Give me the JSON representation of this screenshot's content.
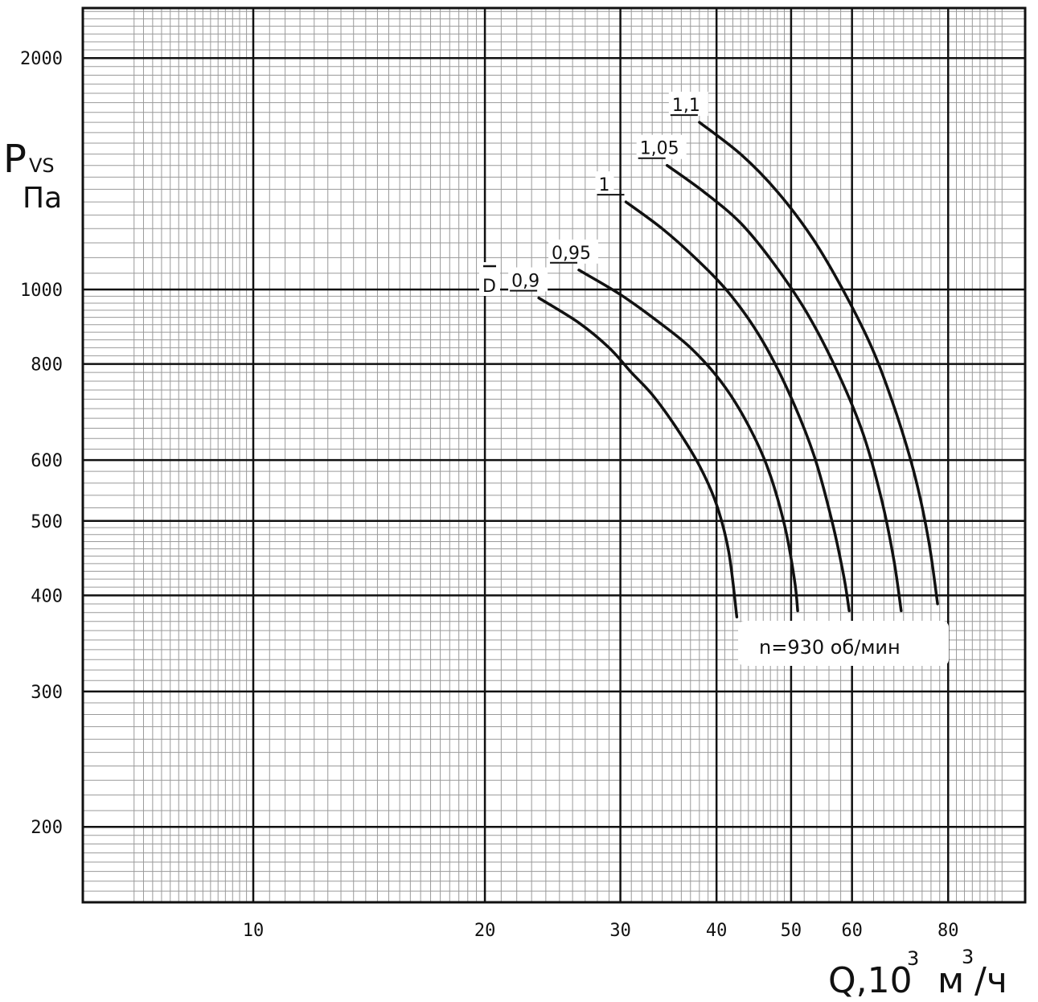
{
  "chart_data": {
    "type": "line",
    "title": "",
    "xscale": "log",
    "yscale": "log",
    "xlim": [
      7.0,
      95.0
    ],
    "ylim": [
      160,
      2500
    ],
    "grid": true,
    "xlabel": {
      "main": "Q,10",
      "exp": "3",
      "unit_main": "м",
      "unit_exp": "3",
      "unit_rest": "/ч"
    },
    "ylabel": {
      "main": "P",
      "sub": "VS",
      "unit": "Па"
    },
    "x_ticks": [
      {
        "value": 10,
        "label": "10"
      },
      {
        "value": 20,
        "label": "20"
      },
      {
        "value": 30,
        "label": "30"
      },
      {
        "value": 40,
        "label": "40"
      },
      {
        "value": 50,
        "label": "50"
      },
      {
        "value": 60,
        "label": "60"
      },
      {
        "value": 80,
        "label": "80"
      }
    ],
    "y_ticks": [
      {
        "value": 2000,
        "label": "2000"
      },
      {
        "value": 1000,
        "label": "1000"
      },
      {
        "value": 800,
        "label": "800"
      },
      {
        "value": 600,
        "label": "600"
      },
      {
        "value": 500,
        "label": "500"
      },
      {
        "value": 400,
        "label": "400"
      },
      {
        "value": 300,
        "label": "300"
      },
      {
        "value": 200,
        "label": "200"
      }
    ],
    "diameter_symbol": "D",
    "annotation": "n=930 об/мин",
    "series": [
      {
        "name": "0,9",
        "points": [
          [
            23.5,
            975
          ],
          [
            26.5,
            905
          ],
          [
            29,
            840
          ],
          [
            31,
            780
          ],
          [
            33,
            730
          ],
          [
            35.5,
            660
          ],
          [
            38,
            590
          ],
          [
            40,
            525
          ],
          [
            41.5,
            455
          ],
          [
            42.5,
            375
          ]
        ]
      },
      {
        "name": "0,95",
        "points": [
          [
            26.5,
            1060
          ],
          [
            30,
            985
          ],
          [
            33.5,
            910
          ],
          [
            37,
            840
          ],
          [
            40.5,
            760
          ],
          [
            43.5,
            680
          ],
          [
            46.5,
            590
          ],
          [
            49,
            495
          ],
          [
            50.5,
            420
          ],
          [
            51,
            382
          ]
        ]
      },
      {
        "name": "1",
        "points": [
          [
            30.5,
            1300
          ],
          [
            34,
            1200
          ],
          [
            37.5,
            1100
          ],
          [
            41.5,
            990
          ],
          [
            45.5,
            870
          ],
          [
            49.5,
            740
          ],
          [
            53.5,
            610
          ],
          [
            56.5,
            500
          ],
          [
            58.5,
            425
          ],
          [
            59.5,
            382
          ]
        ]
      },
      {
        "name": "1,05",
        "points": [
          [
            34.5,
            1450
          ],
          [
            38.5,
            1340
          ],
          [
            43,
            1220
          ],
          [
            47.5,
            1080
          ],
          [
            52.5,
            930
          ],
          [
            57.5,
            780
          ],
          [
            62,
            650
          ],
          [
            65.5,
            535
          ],
          [
            68,
            445
          ],
          [
            69.5,
            382
          ]
        ]
      },
      {
        "name": "1,1",
        "points": [
          [
            38,
            1650
          ],
          [
            43,
            1500
          ],
          [
            48,
            1340
          ],
          [
            53.5,
            1160
          ],
          [
            59,
            980
          ],
          [
            64,
            830
          ],
          [
            68.5,
            690
          ],
          [
            72.5,
            570
          ],
          [
            75.5,
            470
          ],
          [
            77.5,
            390
          ]
        ]
      }
    ]
  }
}
